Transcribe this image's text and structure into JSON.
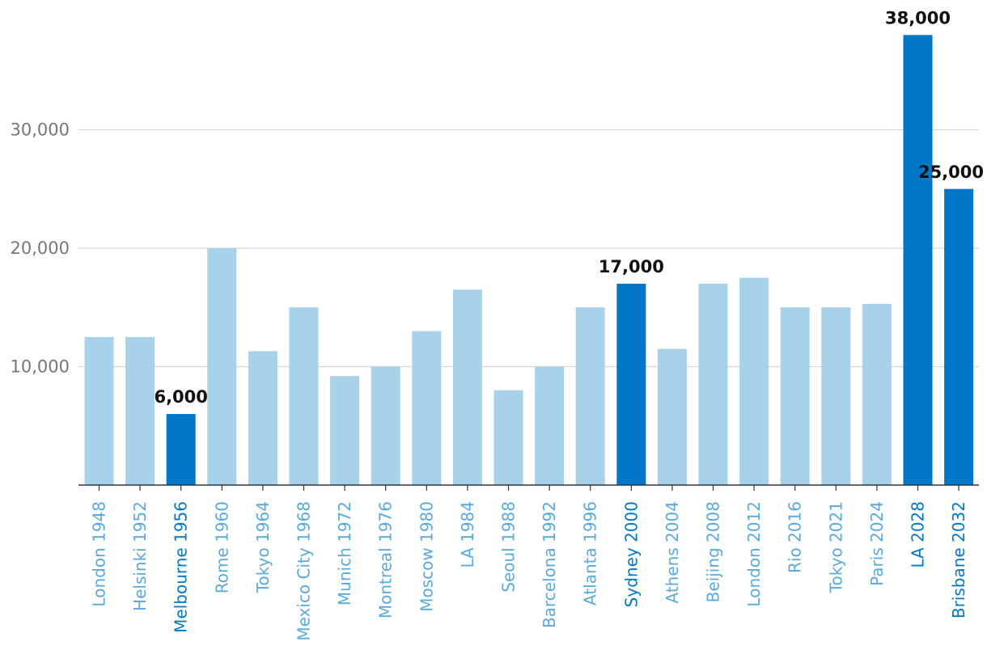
{
  "chart_data": {
    "type": "bar",
    "title": "",
    "xlabel": "",
    "ylabel": "",
    "ylim": [
      0,
      40000
    ],
    "yticks": [
      10000,
      20000,
      30000
    ],
    "ytick_labels": [
      "10,000",
      "20,000",
      "30,000"
    ],
    "grid": true,
    "colors": {
      "normal": "#a8d1ea",
      "highlight": "#0077c8",
      "normal_label": "#5aa9dc",
      "highlight_label": "#0077c8",
      "grid": "#d6d6d6",
      "axis": "#333333"
    },
    "categories": [
      "London 1948",
      "Helsinki 1952",
      "Melbourne 1956",
      "Rome 1960",
      "Tokyo 1964",
      "Mexico City 1968",
      "Munich 1972",
      "Montreal 1976",
      "Moscow 1980",
      "LA 1984",
      "Seoul 1988",
      "Barcelona 1992",
      "Atlanta 1996",
      "Sydney 2000",
      "Athens 2004",
      "Beijing 2008",
      "London 2012",
      "Rio 2016",
      "Tokyo 2021",
      "Paris 2024",
      "LA 2028",
      "Brisbane 2032"
    ],
    "values": [
      12500,
      12500,
      6000,
      20000,
      11300,
      15000,
      9200,
      10000,
      13000,
      16500,
      8000,
      10000,
      15000,
      17000,
      11500,
      17000,
      17500,
      15000,
      15000,
      15300,
      38000,
      25000
    ],
    "highlighted": [
      "Melbourne 1956",
      "Sydney 2000",
      "LA 2028",
      "Brisbane 2032"
    ],
    "data_labels": [
      {
        "category": "Melbourne 1956",
        "text": "6,000"
      },
      {
        "category": "Sydney 2000",
        "text": "17,000"
      },
      {
        "category": "LA 2028",
        "text": "38,000"
      },
      {
        "category": "Brisbane 2032",
        "text": "25,000"
      }
    ]
  }
}
